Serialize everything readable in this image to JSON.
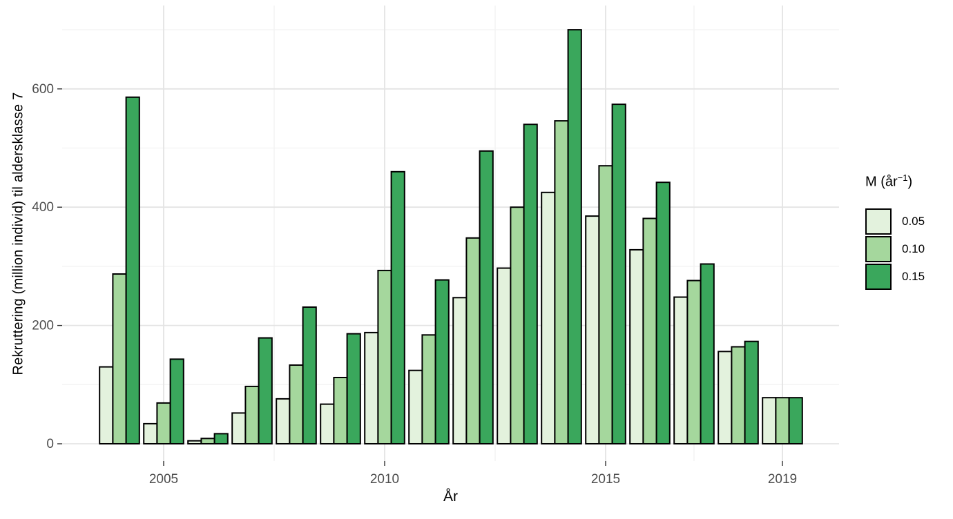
{
  "chart_data": {
    "type": "bar",
    "title": "",
    "xlabel": "År",
    "ylabel": "Rekruttering (million individ) til aldersklasse 7",
    "legend": {
      "title_main": "M (år",
      "title_sup": "−1",
      "title_close": ")"
    },
    "legend_position": "right",
    "grid": "on",
    "categories": [
      "2004",
      "2005",
      "2006",
      "2007",
      "2008",
      "2009",
      "2010",
      "2011",
      "2012",
      "2013",
      "2014",
      "2015",
      "2016",
      "2017",
      "2018",
      "2019"
    ],
    "series": [
      {
        "name": "0.05",
        "color": "#E3F2DD",
        "values": [
          130,
          34,
          5,
          52,
          76,
          67,
          188,
          124,
          247,
          297,
          425,
          385,
          328,
          248,
          156,
          78
        ]
      },
      {
        "name": "0.10",
        "color": "#A5D79D",
        "values": [
          287,
          69,
          9,
          97,
          133,
          112,
          293,
          184,
          348,
          400,
          546,
          470,
          381,
          276,
          164,
          78
        ]
      },
      {
        "name": "0.15",
        "color": "#3AA75C",
        "values": [
          586,
          143,
          17,
          179,
          231,
          186,
          460,
          277,
          495,
          540,
          700,
          574,
          442,
          304,
          173,
          78
        ]
      }
    ],
    "bar_border_color": "#000000",
    "x_ticks": [
      "2005",
      "2010",
      "2015",
      "2019"
    ],
    "x_minor_gridlines": [
      2007.5,
      2012.5,
      2017
    ],
    "y_ticks": [
      "0",
      "200",
      "400",
      "600"
    ],
    "y_minor_gridlines": [
      100,
      300,
      500,
      700
    ],
    "ylim": [
      0,
      740
    ],
    "colors": {
      "grid_major": "#E4E4E4",
      "grid_minor": "#F1F1F1",
      "axis_text": "#4D4D4D",
      "tick_mark": "#333333",
      "background": "#FFFFFF"
    }
  }
}
